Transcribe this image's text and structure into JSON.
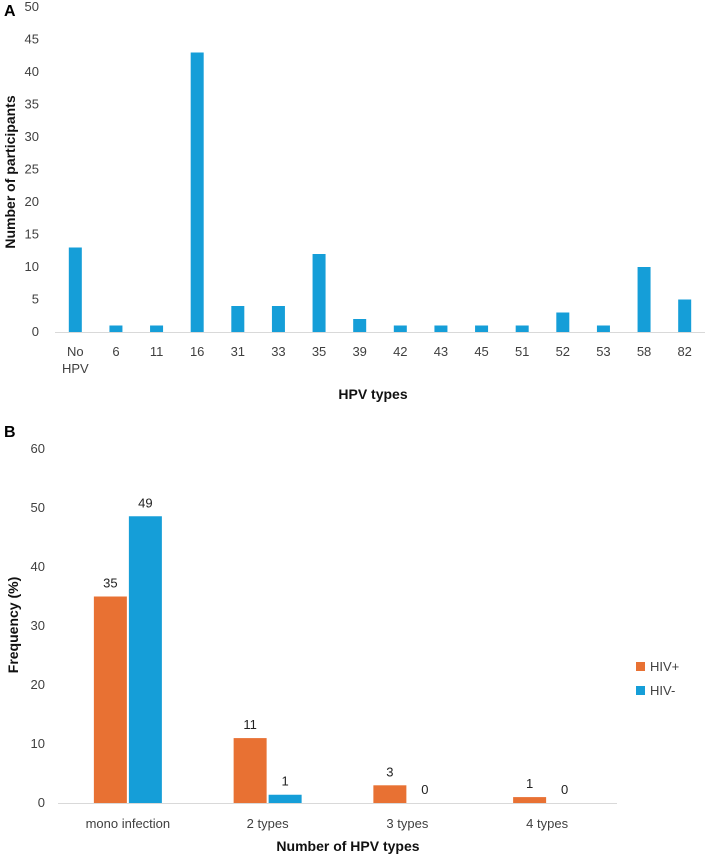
{
  "chart_data": [
    {
      "panel": "A",
      "type": "bar",
      "categories": [
        "No HPV",
        "6",
        "11",
        "16",
        "31",
        "33",
        "35",
        "39",
        "42",
        "43",
        "45",
        "51",
        "52",
        "53",
        "58",
        "82"
      ],
      "values": [
        13,
        1,
        1,
        43,
        4,
        4,
        12,
        2,
        1,
        1,
        1,
        1,
        3,
        1,
        10,
        5
      ],
      "xlabel": "HPV types",
      "ylabel": "Number of participants",
      "ylim": [
        0,
        50
      ],
      "yticks": [
        0,
        5,
        10,
        15,
        20,
        25,
        30,
        35,
        40,
        45,
        50
      ],
      "color": "#159ed8",
      "grid": false
    },
    {
      "panel": "B",
      "type": "bar",
      "categories": [
        "mono infection",
        "2 types",
        "3 types",
        "4 types"
      ],
      "series": [
        {
          "name": "HIV+",
          "values": [
            35,
            11,
            3,
            1
          ],
          "labels": [
            "35",
            "11",
            "3",
            "1"
          ],
          "color": "#e87133"
        },
        {
          "name": "HIV-",
          "values": [
            48.6,
            1.4,
            0,
            0
          ],
          "labels": [
            "49",
            "1",
            "0",
            "0"
          ],
          "color": "#159ed8"
        }
      ],
      "xlabel": "Number of HPV types",
      "ylabel": "Frequency (%)",
      "ylim": [
        0,
        60
      ],
      "yticks": [
        0,
        10,
        20,
        30,
        40,
        50,
        60
      ],
      "legend": "right",
      "grid": false
    }
  ]
}
